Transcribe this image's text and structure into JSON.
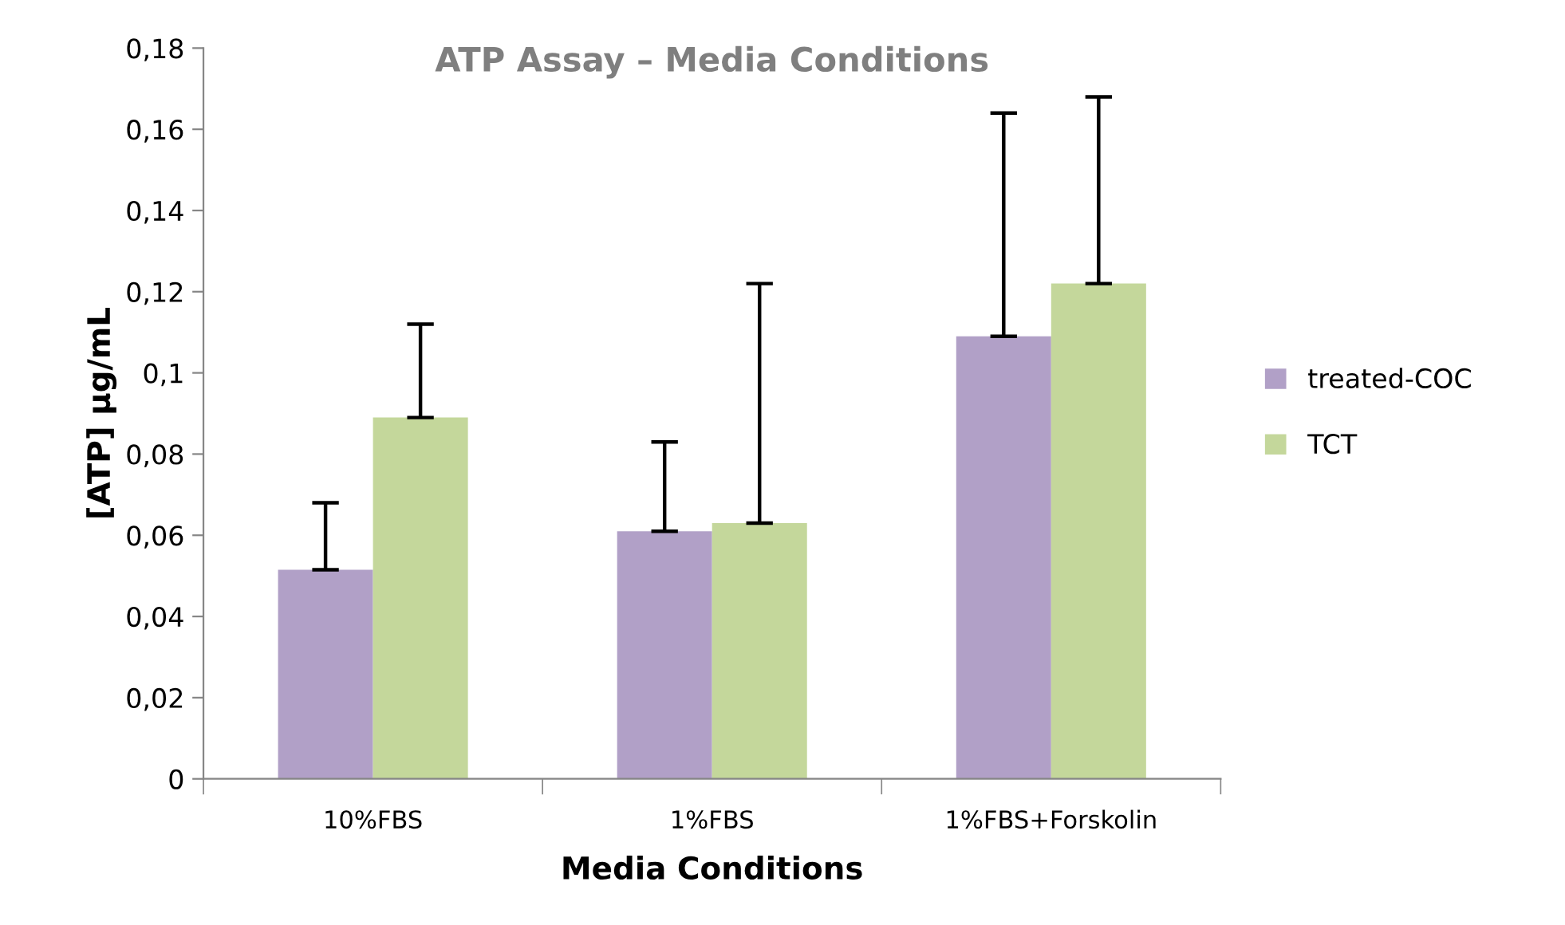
{
  "chart_data": {
    "type": "bar",
    "title": "ATP Assay – Media Conditions",
    "xlabel": "Media Conditions",
    "ylabel": "[ATP] µg/mL",
    "categories": [
      "10%FBS",
      "1%FBS",
      "1%FBS+Forskolin"
    ],
    "series": [
      {
        "name": "treated-COC",
        "color": "#b1a0c7",
        "values": [
          0.0515,
          0.061,
          0.109
        ],
        "errors": [
          [
            0.0515,
            0.068
          ],
          [
            0.061,
            0.083
          ],
          [
            0.109,
            0.164
          ]
        ]
      },
      {
        "name": "TCT",
        "color": "#c4d79b",
        "values": [
          0.089,
          0.063,
          0.122
        ],
        "errors": [
          [
            0.089,
            0.112
          ],
          [
            0.063,
            0.122
          ],
          [
            0.122,
            0.168
          ]
        ]
      }
    ],
    "ylim": [
      0,
      0.18
    ],
    "yticks": [
      0,
      {
        "value": 0.02,
        "label": "0,02"
      },
      {
        "value": 0.04,
        "label": "0,04"
      },
      {
        "value": 0.06,
        "label": "0,06"
      },
      {
        "value": 0.08,
        "label": "0,08"
      },
      {
        "value": 0.1,
        "label": "0,1"
      },
      {
        "value": 0.12,
        "label": "0,12"
      },
      {
        "value": 0.14,
        "label": "0,14"
      },
      {
        "value": 0.16,
        "label": "0,16"
      },
      {
        "value": 0.18,
        "label": "0,18"
      }
    ],
    "grid": false,
    "legend": "right"
  }
}
